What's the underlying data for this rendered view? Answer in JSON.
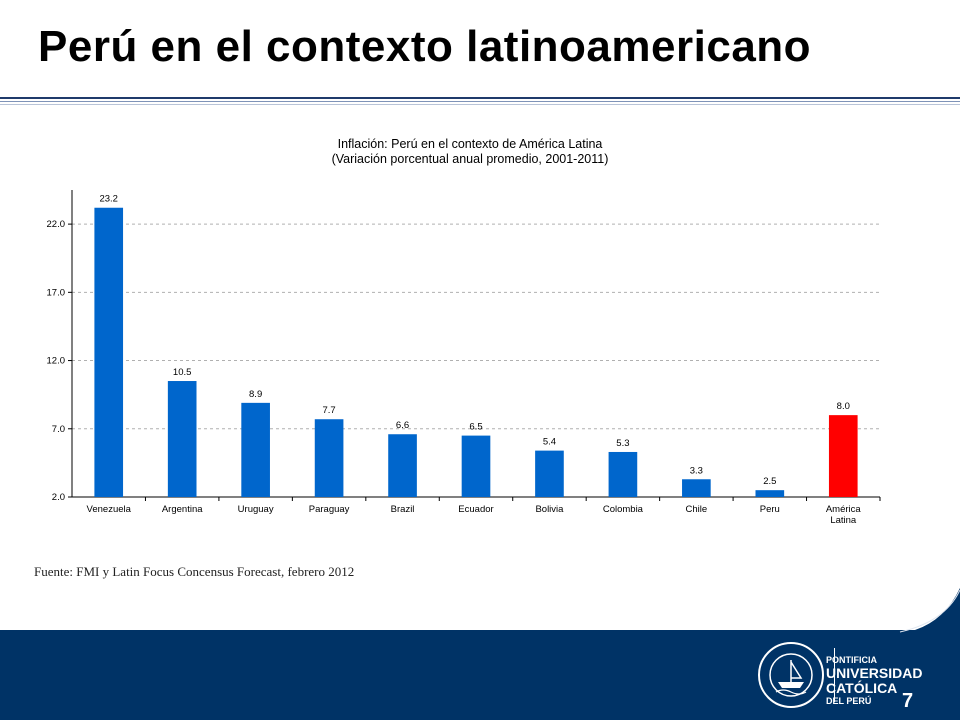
{
  "slide": {
    "title": "Perú en el contexto latinoamericano",
    "source": "Fuente: FMI y Latin Focus Concensus Forecast, febrero 2012",
    "page_number": "7"
  },
  "logo": {
    "line1": "PONTIFICIA",
    "line2": "UNIVERSIDAD",
    "line3": "CATÓLICA",
    "line4": "DEL PERÚ",
    "seal_text": "ET LUX IN TENEBRIS LUCET",
    "year": "MCMXVII"
  },
  "colors": {
    "bar": "#0066CC",
    "highlight": "#FF0000",
    "footer": "#003366"
  },
  "chart_data": {
    "type": "bar",
    "title_line1": "Inflación: Perú en el contexto de América Latina",
    "title_line2": "(Variación porcentual anual promedio, 2001-2011)",
    "categories": [
      "Venezuela",
      "Argentina",
      "Uruguay",
      "Paraguay",
      "Brazil",
      "Ecuador",
      "Bolivia",
      "Colombia",
      "Chile",
      "Peru",
      "América Latina"
    ],
    "values": [
      23.2,
      10.5,
      8.9,
      7.7,
      6.6,
      6.5,
      5.4,
      5.3,
      3.3,
      2.5,
      8.0
    ],
    "value_labels": [
      "23.2",
      "10.5",
      "8.9",
      "7.7",
      "6.6",
      "6.5",
      "5.4",
      "5.3",
      "3.3",
      "2.5",
      "8.0"
    ],
    "highlight_index": 10,
    "yticks": [
      "2.0",
      "7.0",
      "12.0",
      "17.0",
      "22.0"
    ],
    "ylim": [
      2.0,
      24.5
    ],
    "grid": true,
    "xlabel": "",
    "ylabel": ""
  }
}
